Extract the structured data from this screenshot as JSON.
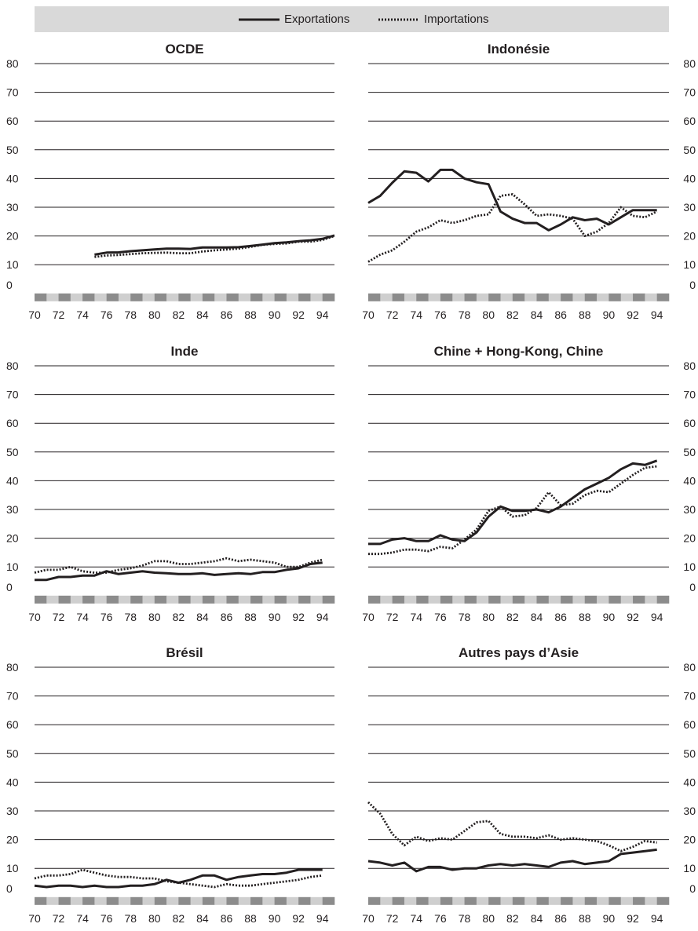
{
  "legend": {
    "exports_label": "Exportations",
    "imports_label": "Importations"
  },
  "chart_data": [
    {
      "type": "line",
      "title": "OCDE",
      "ylim": [
        0,
        80
      ],
      "yticks": [
        "0",
        "10",
        "20",
        "30",
        "40",
        "50",
        "60",
        "70",
        "80"
      ],
      "xticks": [
        "70",
        "72",
        "74",
        "76",
        "78",
        "80",
        "82",
        "84",
        "86",
        "88",
        "90",
        "92",
        "94"
      ],
      "xlim": [
        1970,
        1995
      ],
      "series": [
        {
          "name": "Exportations",
          "style": "solid",
          "x": [
            1975,
            1976,
            1977,
            1978,
            1979,
            1980,
            1981,
            1982,
            1983,
            1984,
            1985,
            1986,
            1987,
            1988,
            1989,
            1990,
            1991,
            1992,
            1993,
            1994,
            1995
          ],
          "y": [
            13.5,
            14.2,
            14.3,
            14.7,
            15.0,
            15.3,
            15.6,
            15.6,
            15.5,
            16.0,
            16.0,
            16.0,
            16.1,
            16.5,
            17.0,
            17.5,
            17.8,
            18.2,
            18.5,
            19.0,
            20.2
          ]
        },
        {
          "name": "Importations",
          "style": "dotted",
          "x": [
            1975,
            1976,
            1977,
            1978,
            1979,
            1980,
            1981,
            1982,
            1983,
            1984,
            1985,
            1986,
            1987,
            1988,
            1989,
            1990,
            1991,
            1992,
            1993,
            1994,
            1995
          ],
          "y": [
            12.7,
            13.2,
            13.4,
            13.7,
            14.0,
            14.1,
            14.2,
            14.0,
            14.0,
            14.6,
            15.0,
            15.3,
            15.6,
            16.2,
            16.9,
            17.2,
            17.4,
            18.0,
            18.0,
            18.6,
            20.0
          ]
        }
      ]
    },
    {
      "type": "line",
      "title": "Indonésie",
      "ylim": [
        0,
        80
      ],
      "yticks": [
        "0",
        "10",
        "20",
        "30",
        "40",
        "50",
        "60",
        "70",
        "80"
      ],
      "xticks": [
        "70",
        "72",
        "74",
        "76",
        "78",
        "80",
        "82",
        "84",
        "86",
        "88",
        "90",
        "92",
        "94"
      ],
      "xlim": [
        1970,
        1995
      ],
      "series": [
        {
          "name": "Exportations",
          "style": "solid",
          "x": [
            1970,
            1971,
            1972,
            1973,
            1974,
            1975,
            1976,
            1977,
            1978,
            1979,
            1980,
            1981,
            1982,
            1983,
            1984,
            1985,
            1986,
            1987,
            1988,
            1989,
            1990,
            1991,
            1992,
            1993,
            1994
          ],
          "y": [
            31.5,
            34,
            38.5,
            42.5,
            42,
            39,
            43,
            43,
            40,
            38.7,
            38,
            28.5,
            26,
            24.5,
            24.5,
            22,
            24,
            26.5,
            25.5,
            26,
            24,
            26.5,
            29,
            29,
            29
          ]
        },
        {
          "name": "Importations",
          "style": "dotted",
          "x": [
            1970,
            1971,
            1972,
            1973,
            1974,
            1975,
            1976,
            1977,
            1978,
            1979,
            1980,
            1981,
            1982,
            1983,
            1984,
            1985,
            1986,
            1987,
            1988,
            1989,
            1990,
            1991,
            1992,
            1993,
            1994
          ],
          "y": [
            11,
            13.5,
            15,
            18,
            21.5,
            23,
            25.5,
            24.5,
            25.5,
            27,
            27.5,
            34,
            34.5,
            31,
            27,
            27.5,
            27,
            26,
            20,
            21.5,
            24.5,
            30,
            27,
            26.5,
            28.5
          ]
        }
      ]
    },
    {
      "type": "line",
      "title": "Inde",
      "ylim": [
        0,
        80
      ],
      "yticks": [
        "0",
        "10",
        "20",
        "30",
        "40",
        "50",
        "60",
        "70",
        "80"
      ],
      "xticks": [
        "70",
        "72",
        "74",
        "76",
        "78",
        "80",
        "82",
        "84",
        "86",
        "88",
        "90",
        "92",
        "94"
      ],
      "xlim": [
        1970,
        1995
      ],
      "series": [
        {
          "name": "Exportations",
          "style": "solid",
          "x": [
            1970,
            1971,
            1972,
            1973,
            1974,
            1975,
            1976,
            1977,
            1978,
            1979,
            1980,
            1981,
            1982,
            1983,
            1984,
            1985,
            1986,
            1987,
            1988,
            1989,
            1990,
            1991,
            1992,
            1993,
            1994
          ],
          "y": [
            5.5,
            5.5,
            6.5,
            6.5,
            7,
            7,
            8.5,
            7.5,
            8,
            8.5,
            8,
            7.8,
            7.5,
            7.5,
            7.8,
            7.2,
            7.5,
            7.8,
            7.5,
            8.2,
            8.2,
            9,
            9.5,
            11,
            11.5
          ]
        },
        {
          "name": "Importations",
          "style": "dotted",
          "x": [
            1970,
            1971,
            1972,
            1973,
            1974,
            1975,
            1976,
            1977,
            1978,
            1979,
            1980,
            1981,
            1982,
            1983,
            1984,
            1985,
            1986,
            1987,
            1988,
            1989,
            1990,
            1991,
            1992,
            1993,
            1994
          ],
          "y": [
            8,
            9,
            9,
            10,
            8.5,
            8,
            8,
            9,
            9.5,
            10.5,
            12,
            12,
            11,
            11,
            11.5,
            12,
            13,
            12,
            12.5,
            12,
            11.5,
            10,
            10,
            11.5,
            12.5
          ]
        }
      ]
    },
    {
      "type": "line",
      "title": "Chine + Hong-Kong, Chine",
      "ylim": [
        0,
        80
      ],
      "yticks": [
        "0",
        "10",
        "20",
        "30",
        "40",
        "50",
        "60",
        "70",
        "80"
      ],
      "xticks": [
        "70",
        "72",
        "74",
        "76",
        "78",
        "80",
        "82",
        "84",
        "86",
        "88",
        "90",
        "92",
        "94"
      ],
      "xlim": [
        1970,
        1995
      ],
      "series": [
        {
          "name": "Exportations",
          "style": "solid",
          "x": [
            1970,
            1971,
            1972,
            1973,
            1974,
            1975,
            1976,
            1977,
            1978,
            1979,
            1980,
            1981,
            1982,
            1983,
            1984,
            1985,
            1986,
            1987,
            1988,
            1989,
            1990,
            1991,
            1992,
            1993,
            1994
          ],
          "y": [
            18,
            18,
            19.5,
            20,
            19,
            19,
            21,
            19.5,
            19,
            22,
            27.5,
            31,
            29.5,
            29.5,
            30,
            29,
            31,
            34,
            37,
            39,
            41,
            44,
            46,
            45.5,
            47
          ]
        },
        {
          "name": "Importations",
          "style": "dotted",
          "x": [
            1970,
            1971,
            1972,
            1973,
            1974,
            1975,
            1976,
            1977,
            1978,
            1979,
            1980,
            1981,
            1982,
            1983,
            1984,
            1985,
            1986,
            1987,
            1988,
            1989,
            1990,
            1991,
            1992,
            1993,
            1994
          ],
          "y": [
            14.5,
            14.5,
            15,
            16,
            16,
            15.5,
            17,
            16.5,
            19.5,
            23,
            29.5,
            31,
            27.5,
            28,
            30.5,
            36,
            31.5,
            32,
            35,
            36.5,
            36,
            39,
            42,
            44.5,
            45
          ]
        }
      ]
    },
    {
      "type": "line",
      "title": "Brésil",
      "ylim": [
        0,
        80
      ],
      "yticks": [
        "0",
        "10",
        "20",
        "30",
        "40",
        "50",
        "60",
        "70",
        "80"
      ],
      "xticks": [
        "70",
        "72",
        "74",
        "76",
        "78",
        "80",
        "82",
        "84",
        "86",
        "88",
        "90",
        "92",
        "94"
      ],
      "xlim": [
        1970,
        1995
      ],
      "series": [
        {
          "name": "Exportations",
          "style": "solid",
          "x": [
            1970,
            1971,
            1972,
            1973,
            1974,
            1975,
            1976,
            1977,
            1978,
            1979,
            1980,
            1981,
            1982,
            1983,
            1984,
            1985,
            1986,
            1987,
            1988,
            1989,
            1990,
            1991,
            1992,
            1993,
            1994
          ],
          "y": [
            4,
            3.5,
            4,
            4,
            3.5,
            4,
            3.5,
            3.5,
            4,
            4,
            4.5,
            6,
            5,
            6,
            7.5,
            7.5,
            6,
            7,
            7.5,
            8,
            8,
            8.5,
            9.5,
            9.5,
            9.5
          ]
        },
        {
          "name": "Importations",
          "style": "dotted",
          "x": [
            1970,
            1971,
            1972,
            1973,
            1974,
            1975,
            1976,
            1977,
            1978,
            1979,
            1980,
            1981,
            1982,
            1983,
            1984,
            1985,
            1986,
            1987,
            1988,
            1989,
            1990,
            1991,
            1992,
            1993,
            1994
          ],
          "y": [
            6.5,
            7.5,
            7.5,
            8,
            9.5,
            8.5,
            7.5,
            7,
            7,
            6.5,
            6.5,
            5.5,
            5,
            4.5,
            4,
            3.5,
            4.5,
            4,
            4,
            4.5,
            5,
            5.5,
            6,
            7,
            7.5
          ]
        }
      ]
    },
    {
      "type": "line",
      "title": "Autres pays d’Asie",
      "ylim": [
        0,
        80
      ],
      "yticks": [
        "0",
        "10",
        "20",
        "30",
        "40",
        "50",
        "60",
        "70",
        "80"
      ],
      "xticks": [
        "70",
        "72",
        "74",
        "76",
        "78",
        "80",
        "82",
        "84",
        "86",
        "88",
        "90",
        "92",
        "94"
      ],
      "xlim": [
        1970,
        1995
      ],
      "series": [
        {
          "name": "Exportations",
          "style": "solid",
          "x": [
            1970,
            1971,
            1972,
            1973,
            1974,
            1975,
            1976,
            1977,
            1978,
            1979,
            1980,
            1981,
            1982,
            1983,
            1984,
            1985,
            1986,
            1987,
            1988,
            1989,
            1990,
            1991,
            1992,
            1993,
            1994
          ],
          "y": [
            12.5,
            12,
            11,
            12,
            9,
            10.5,
            10.5,
            9.5,
            10,
            10,
            11,
            11.5,
            11,
            11.5,
            11,
            10.5,
            12,
            12.5,
            11.5,
            12,
            12.5,
            15,
            15.5,
            16,
            16.5
          ]
        },
        {
          "name": "Importations",
          "style": "dotted",
          "x": [
            1970,
            1971,
            1972,
            1973,
            1974,
            1975,
            1976,
            1977,
            1978,
            1979,
            1980,
            1981,
            1982,
            1983,
            1984,
            1985,
            1986,
            1987,
            1988,
            1989,
            1990,
            1991,
            1992,
            1993,
            1994
          ],
          "y": [
            33,
            29,
            22,
            18,
            21,
            19.5,
            20.5,
            20,
            23,
            26,
            26.5,
            22,
            21,
            21,
            20.5,
            21.5,
            20,
            20.5,
            20,
            19.5,
            18,
            16,
            17.5,
            19.5,
            19
          ]
        }
      ]
    }
  ]
}
